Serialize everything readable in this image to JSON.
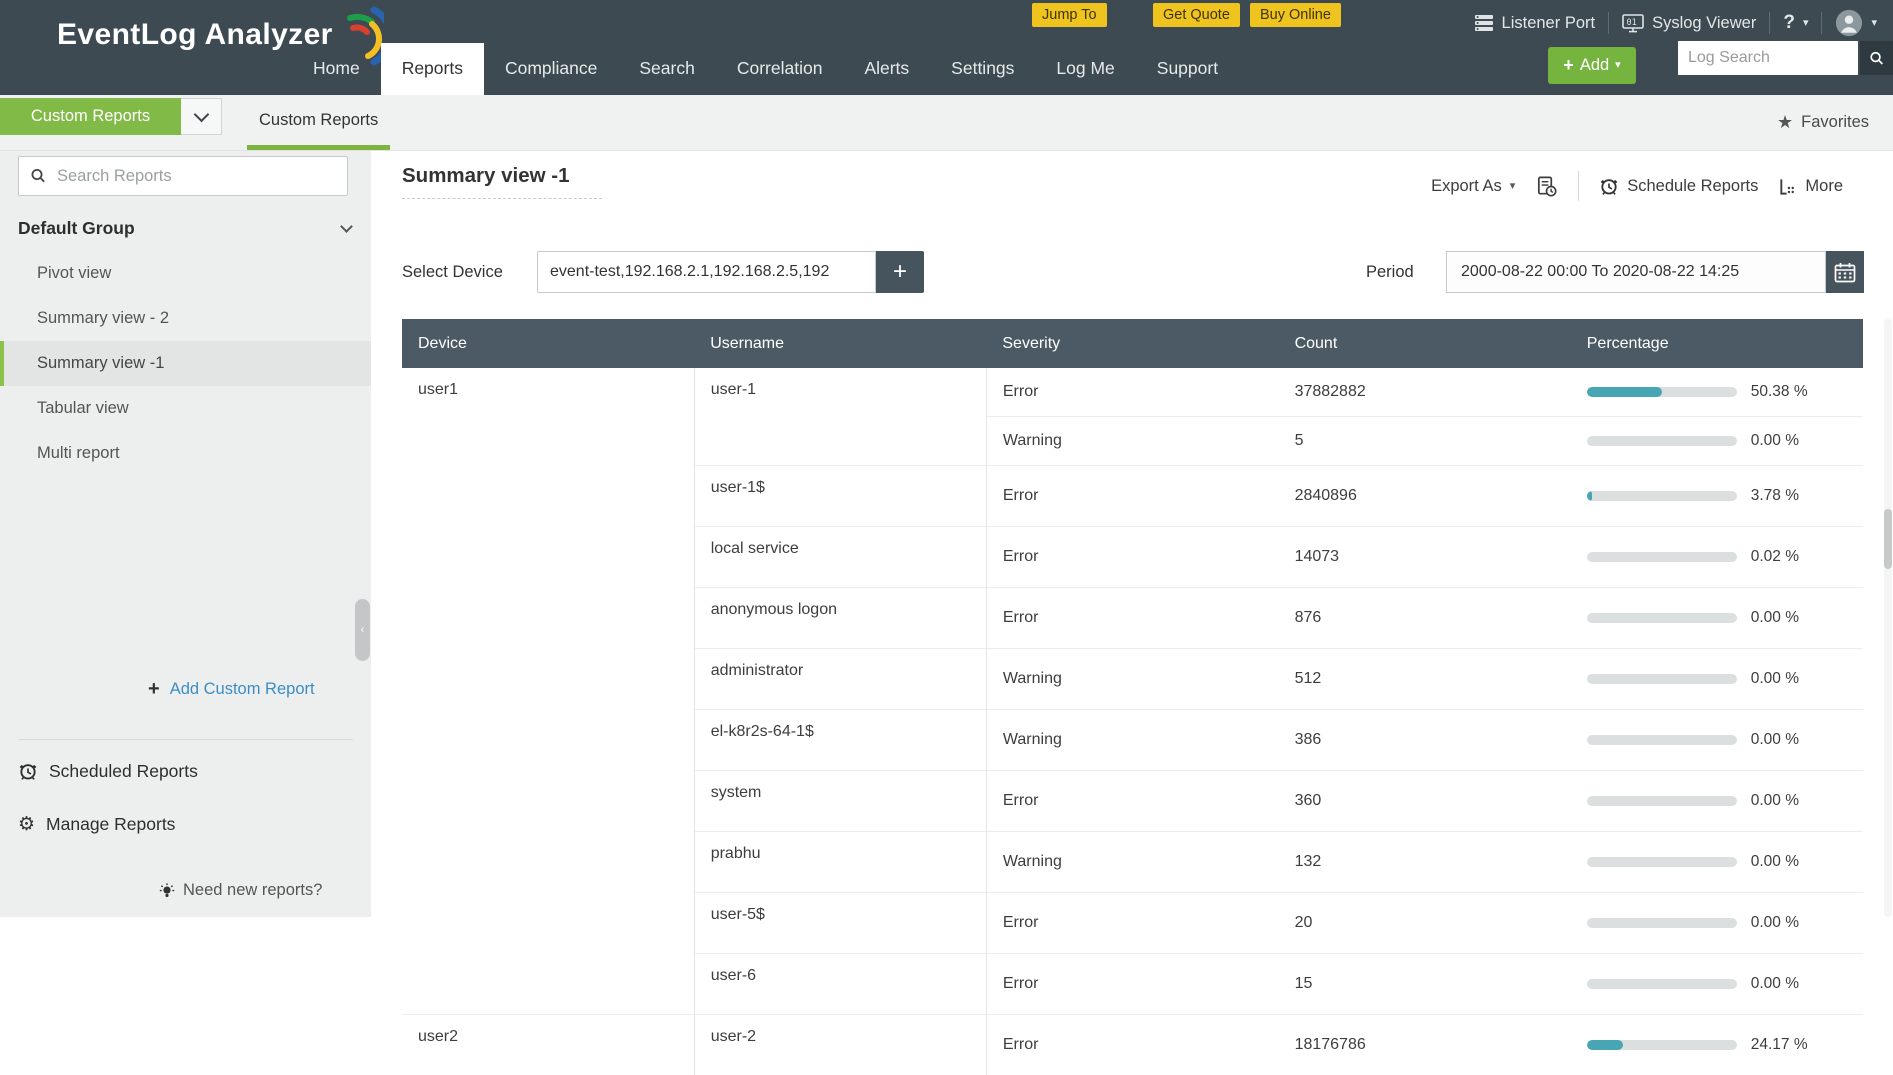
{
  "colors": {
    "header_dark": "#3e4a52",
    "accent_green": "#7cb342",
    "button_green": "#76b440",
    "promo_yellow": "#f0c41f",
    "table_header": "#4b5a64",
    "bar_teal": "#48a6b4",
    "link_blue": "#3c8dc5"
  },
  "icons": {
    "caret": "▾",
    "star": "★",
    "plus": "+",
    "gear": "⚙",
    "question": "?",
    "collapse_arrow": "‹"
  },
  "header": {
    "logo": "EventLog Analyzer",
    "nav": [
      {
        "label": "Home",
        "active": false
      },
      {
        "label": "Reports",
        "active": true
      },
      {
        "label": "Compliance",
        "active": false
      },
      {
        "label": "Search",
        "active": false
      },
      {
        "label": "Correlation",
        "active": false
      },
      {
        "label": "Alerts",
        "active": false
      },
      {
        "label": "Settings",
        "active": false
      },
      {
        "label": "Log Me",
        "active": false
      },
      {
        "label": "Support",
        "active": false
      }
    ],
    "promo_buttons": [
      "Jump To",
      "Get Quote",
      "Buy Online"
    ],
    "listener_port": "Listener Port",
    "syslog_viewer": "Syslog Viewer",
    "help": "?",
    "add_button": "Add",
    "log_search_placeholder": "Log Search"
  },
  "toolbar": {
    "reports_menu": "Custom Reports",
    "tab": "Custom Reports",
    "favorites": "Favorites"
  },
  "sidebar": {
    "search_placeholder": "Search Reports",
    "group": "Default Group",
    "items": [
      {
        "label": "Pivot view",
        "selected": false
      },
      {
        "label": "Summary view - 2",
        "selected": false
      },
      {
        "label": "Summary view -1",
        "selected": true
      },
      {
        "label": "Tabular view",
        "selected": false
      },
      {
        "label": "Multi report",
        "selected": false
      }
    ],
    "add_custom_report": "Add Custom Report",
    "scheduled_reports": "Scheduled Reports",
    "manage_reports": "Manage Reports",
    "need_new_reports": "Need new reports?"
  },
  "main": {
    "title": "Summary view -1",
    "export_as": "Export As",
    "schedule_reports": "Schedule Reports",
    "more": "More",
    "filters": {
      "device_label": "Select Device",
      "device_value": "event-test,192.168.2.1,192.168.2.5,192",
      "period_label": "Period",
      "period_value": "2000-08-22 00:00 To 2020-08-22 14:25"
    }
  },
  "table": {
    "columns": [
      "Device",
      "Username",
      "Severity",
      "Count",
      "Percentage"
    ],
    "groups": [
      {
        "device": "user1",
        "users": [
          {
            "username": "user-1",
            "rows": [
              {
                "severity": "Error",
                "count": "37882882",
                "pct": 50.38,
                "pct_label": "50.38 %"
              },
              {
                "severity": "Warning",
                "count": "5",
                "pct": 0,
                "pct_label": "0.00 %"
              }
            ]
          },
          {
            "username": "user-1$",
            "rows": [
              {
                "severity": "Error",
                "count": "2840896",
                "pct": 3.78,
                "pct_label": "3.78 %"
              }
            ]
          },
          {
            "username": "local service",
            "rows": [
              {
                "severity": "Error",
                "count": "14073",
                "pct": 0.02,
                "pct_label": "0.02 %"
              }
            ]
          },
          {
            "username": "anonymous logon",
            "rows": [
              {
                "severity": "Error",
                "count": "876",
                "pct": 0,
                "pct_label": "0.00 %"
              }
            ]
          },
          {
            "username": "administrator",
            "rows": [
              {
                "severity": "Warning",
                "count": "512",
                "pct": 0,
                "pct_label": "0.00 %"
              }
            ]
          },
          {
            "username": "el-k8r2s-64-1$",
            "rows": [
              {
                "severity": "Warning",
                "count": "386",
                "pct": 0,
                "pct_label": "0.00 %"
              }
            ]
          },
          {
            "username": "system",
            "rows": [
              {
                "severity": "Error",
                "count": "360",
                "pct": 0,
                "pct_label": "0.00 %"
              }
            ]
          },
          {
            "username": "prabhu",
            "rows": [
              {
                "severity": "Warning",
                "count": "132",
                "pct": 0,
                "pct_label": "0.00 %"
              }
            ]
          },
          {
            "username": "user-5$",
            "rows": [
              {
                "severity": "Error",
                "count": "20",
                "pct": 0,
                "pct_label": "0.00 %"
              }
            ]
          },
          {
            "username": "user-6",
            "rows": [
              {
                "severity": "Error",
                "count": "15",
                "pct": 0,
                "pct_label": "0.00 %"
              }
            ]
          }
        ]
      },
      {
        "device": "user2",
        "users": [
          {
            "username": "user-2",
            "rows": [
              {
                "severity": "Error",
                "count": "18176786",
                "pct": 24.17,
                "pct_label": "24.17 %"
              }
            ]
          }
        ]
      }
    ]
  }
}
